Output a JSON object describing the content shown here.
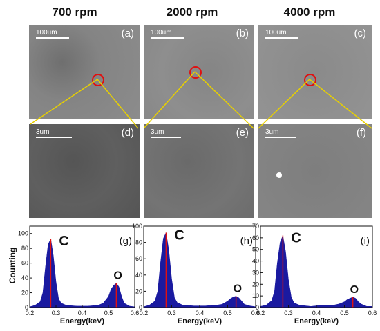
{
  "headers": [
    "700 rpm",
    "2000 rpm",
    "4000 rpm"
  ],
  "top_panels": [
    {
      "label": "(a)",
      "scale": "100um"
    },
    {
      "label": "(b)",
      "scale": "100um"
    },
    {
      "label": "(c)",
      "scale": "100um"
    }
  ],
  "zoom_panels": [
    {
      "label": "(d)",
      "scale": "3um"
    },
    {
      "label": "(e)",
      "scale": "3um"
    },
    {
      "label": "(f)",
      "scale": "3um"
    }
  ],
  "ylabel": "Counting",
  "chart_data": [
    {
      "type": "area",
      "label": "(g)",
      "xlabel": "Energy(keV)",
      "xlim": [
        0.2,
        0.6
      ],
      "ylim": [
        0,
        110
      ],
      "xticks": [
        0.2,
        0.3,
        0.4,
        0.5,
        0.6
      ],
      "yticks": [
        0,
        20,
        40,
        60,
        80,
        100
      ],
      "peaks": [
        {
          "element": "C",
          "energy": 0.28,
          "counts": 93
        },
        {
          "element": "O",
          "energy": 0.53,
          "counts": 33
        }
      ],
      "x": [
        0.2,
        0.22,
        0.24,
        0.25,
        0.26,
        0.27,
        0.28,
        0.29,
        0.3,
        0.31,
        0.32,
        0.34,
        0.38,
        0.42,
        0.46,
        0.48,
        0.5,
        0.51,
        0.52,
        0.53,
        0.54,
        0.55,
        0.56,
        0.58,
        0.6
      ],
      "y": [
        1,
        3,
        8,
        20,
        55,
        85,
        93,
        70,
        35,
        12,
        6,
        3,
        2,
        2,
        3,
        6,
        15,
        25,
        30,
        33,
        28,
        15,
        6,
        2,
        1
      ]
    },
    {
      "type": "area",
      "label": "(h)",
      "xlabel": "Energy(keV)",
      "xlim": [
        0.2,
        0.6
      ],
      "ylim": [
        0,
        100
      ],
      "xticks": [
        0.2,
        0.3,
        0.4,
        0.5,
        0.6
      ],
      "yticks": [
        0,
        20,
        40,
        60,
        80,
        100
      ],
      "peaks": [
        {
          "element": "C",
          "energy": 0.28,
          "counts": 92
        },
        {
          "element": "O",
          "energy": 0.53,
          "counts": 14
        }
      ],
      "x": [
        0.2,
        0.22,
        0.24,
        0.25,
        0.26,
        0.27,
        0.28,
        0.29,
        0.3,
        0.31,
        0.32,
        0.34,
        0.38,
        0.42,
        0.46,
        0.48,
        0.5,
        0.51,
        0.52,
        0.53,
        0.54,
        0.55,
        0.56,
        0.58,
        0.6
      ],
      "y": [
        1,
        3,
        8,
        20,
        55,
        85,
        92,
        70,
        35,
        12,
        6,
        3,
        2,
        2,
        3,
        4,
        8,
        11,
        13,
        14,
        12,
        8,
        4,
        2,
        1
      ]
    },
    {
      "type": "area",
      "label": "(i)",
      "xlabel": "Energy(keV)",
      "xlim": [
        0.2,
        0.6
      ],
      "ylim": [
        0,
        70
      ],
      "xticks": [
        0.2,
        0.3,
        0.4,
        0.5,
        0.6
      ],
      "yticks": [
        0,
        10,
        20,
        30,
        40,
        50,
        60,
        70
      ],
      "peaks": [
        {
          "element": "C",
          "energy": 0.28,
          "counts": 62
        },
        {
          "element": "O",
          "energy": 0.53,
          "counts": 9
        }
      ],
      "x": [
        0.2,
        0.22,
        0.24,
        0.25,
        0.26,
        0.27,
        0.28,
        0.29,
        0.3,
        0.31,
        0.32,
        0.34,
        0.38,
        0.42,
        0.46,
        0.48,
        0.5,
        0.51,
        0.52,
        0.53,
        0.54,
        0.55,
        0.56,
        0.58,
        0.6
      ],
      "y": [
        1,
        2,
        6,
        14,
        38,
        56,
        62,
        48,
        24,
        9,
        4,
        2,
        1,
        2,
        2,
        3,
        5,
        7,
        8,
        9,
        8,
        5,
        3,
        1,
        1
      ]
    }
  ],
  "colors": {
    "fill": "#1a1aa0",
    "peakline": "#e01010",
    "connector": "#e8d000",
    "circle": "#e01010"
  }
}
